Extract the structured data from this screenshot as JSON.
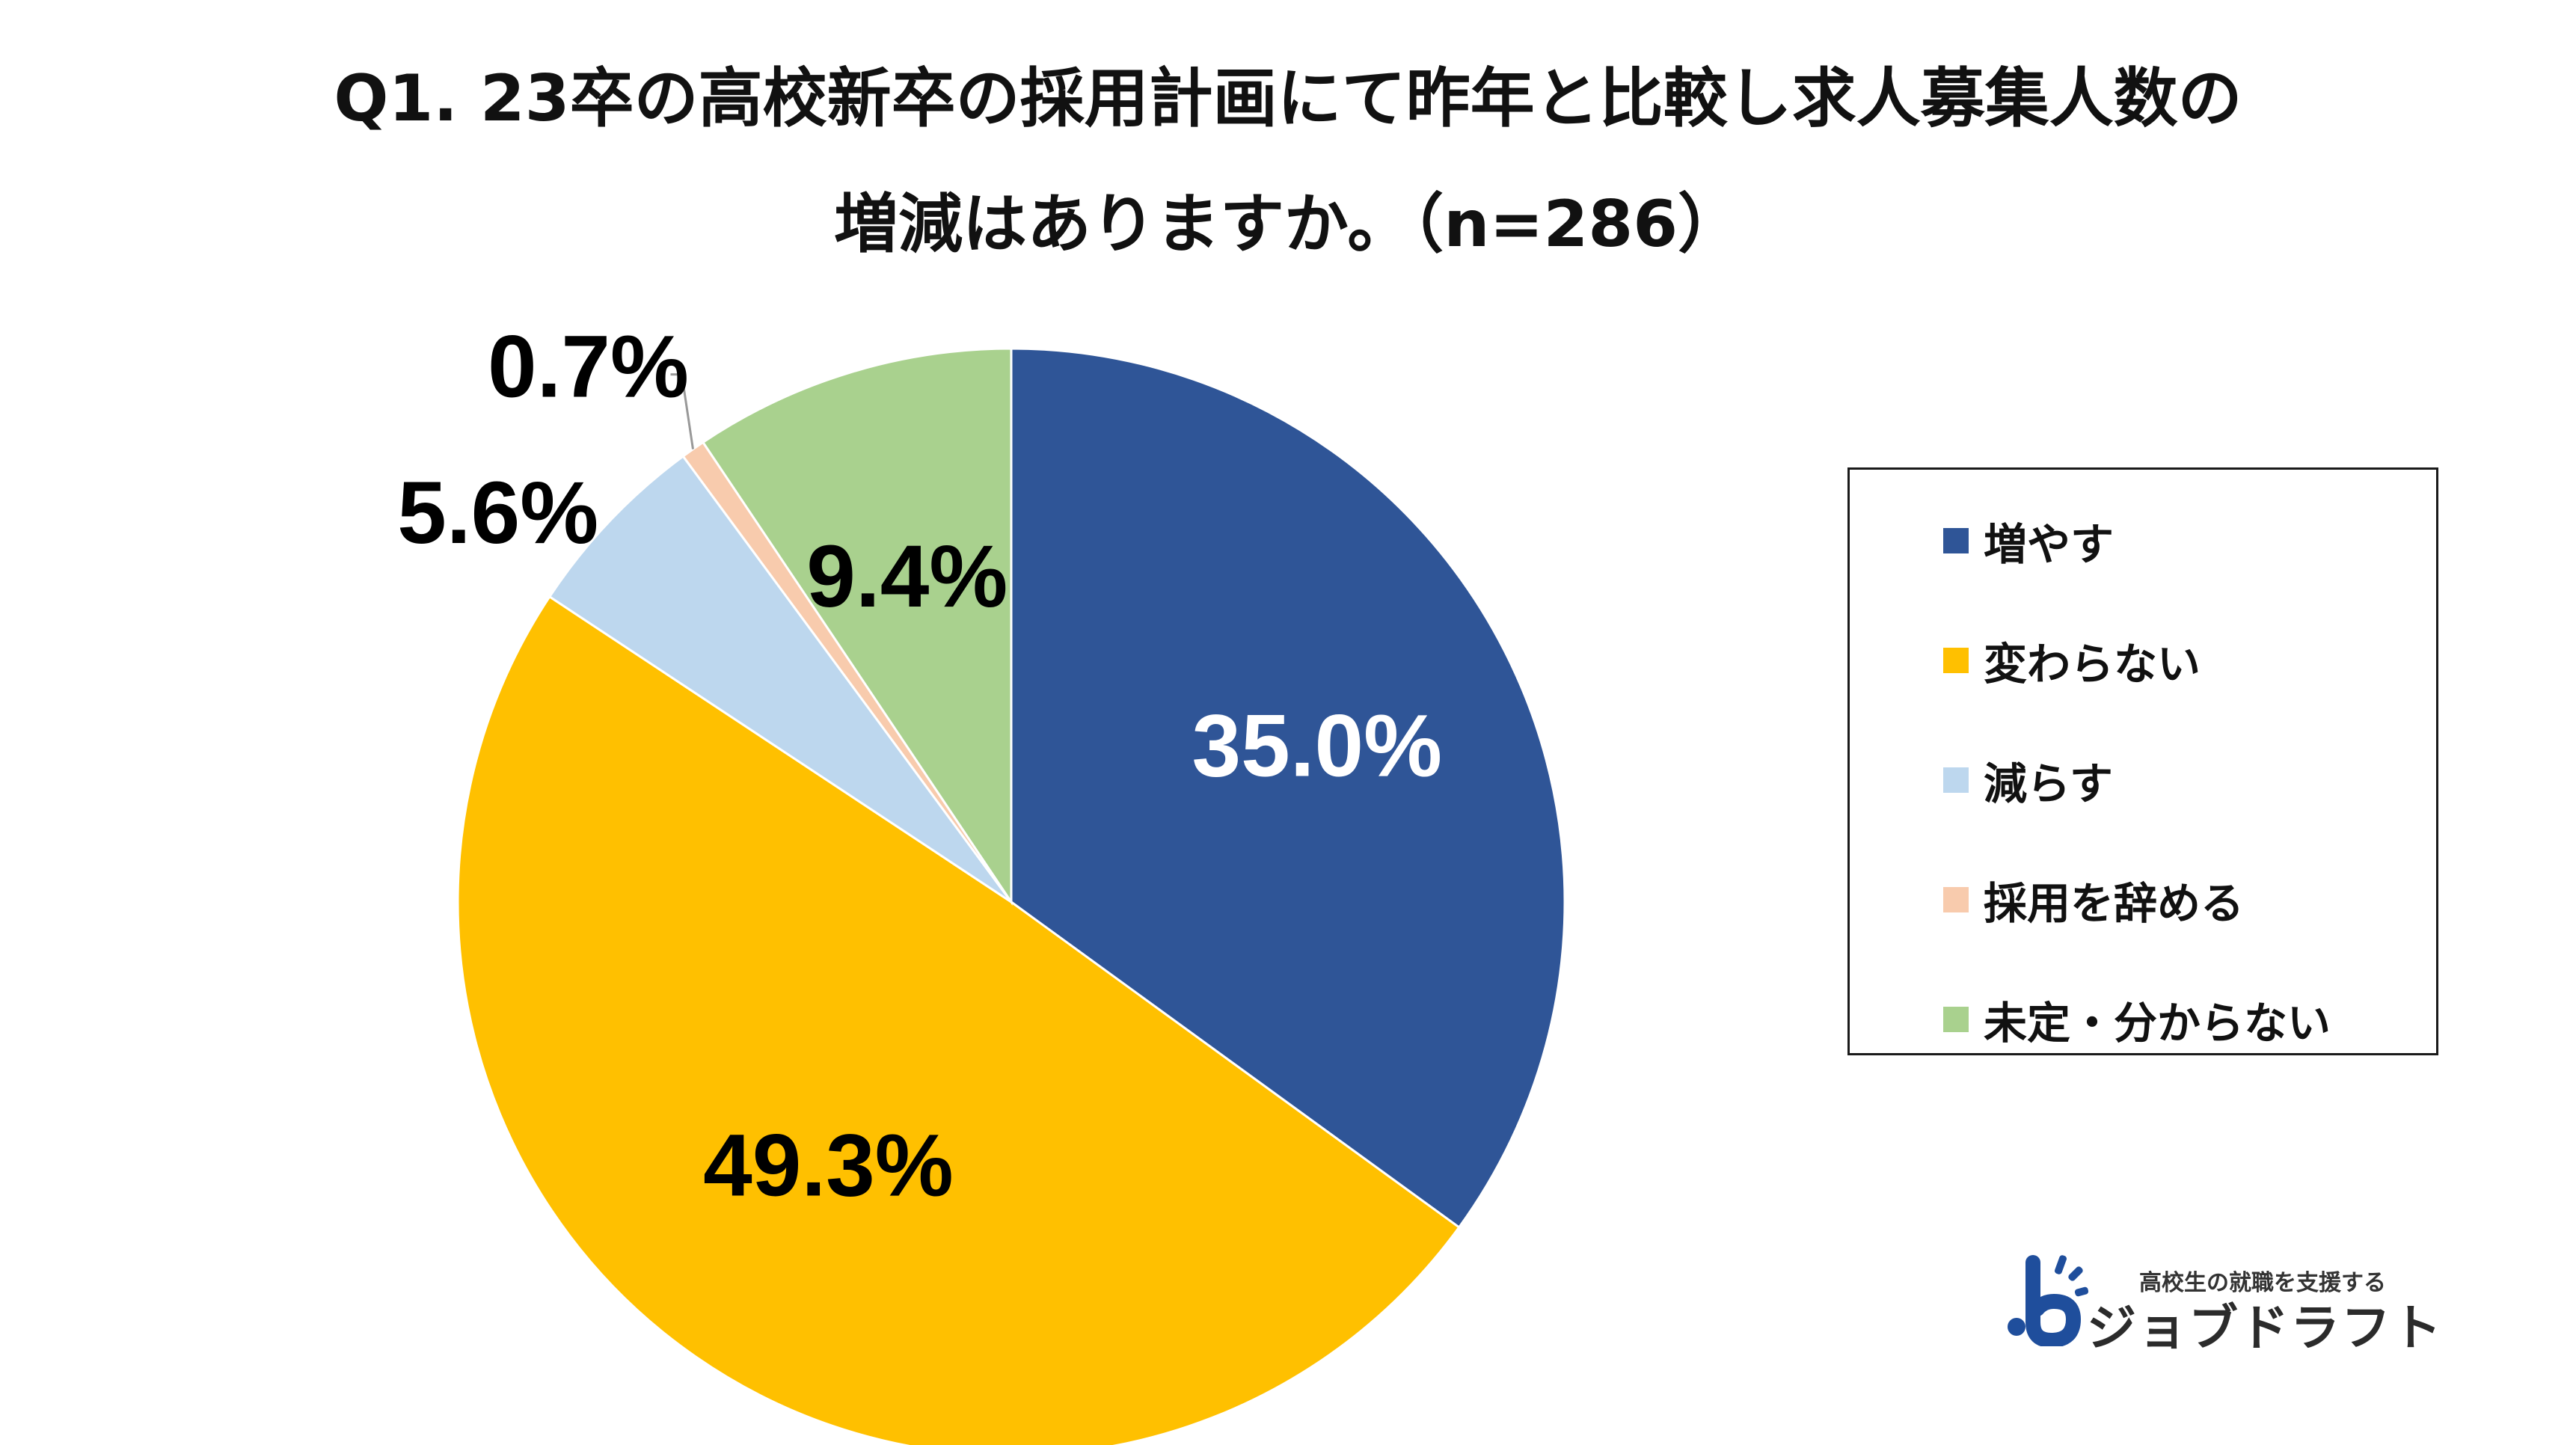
{
  "chart_data": {
    "type": "pie",
    "title_lines": [
      "Q1. 23卒の高校新卒の採用計画にて昨年と比較し求人募集人数の",
      "増減はありますか。（n=286）"
    ],
    "start_angle_deg": 0,
    "direction": "clockwise",
    "legend_position": "right",
    "slices": [
      {
        "name": "増やす",
        "value": 35.0,
        "label": "35.0%",
        "color": "#2F5597",
        "label_color": "#FFFFFF"
      },
      {
        "name": "変わらない",
        "value": 49.3,
        "label": "49.3%",
        "color": "#FFC000",
        "label_color": "#000000"
      },
      {
        "name": "減らす",
        "value": 5.6,
        "label": "5.6%",
        "color": "#BDD7EE",
        "label_color": "#000000"
      },
      {
        "name": "採用を辞める",
        "value": 0.7,
        "label": "0.7%",
        "color": "#F8CBAD",
        "label_color": "#000000"
      },
      {
        "name": "未定・分からない",
        "value": 9.4,
        "label": "9.4%",
        "color": "#A9D18E",
        "label_color": "#000000"
      }
    ]
  },
  "logo": {
    "tagline": "高校生の就職を支援する",
    "name": "ジョブドラフト",
    "color": "#1F4E9C"
  }
}
